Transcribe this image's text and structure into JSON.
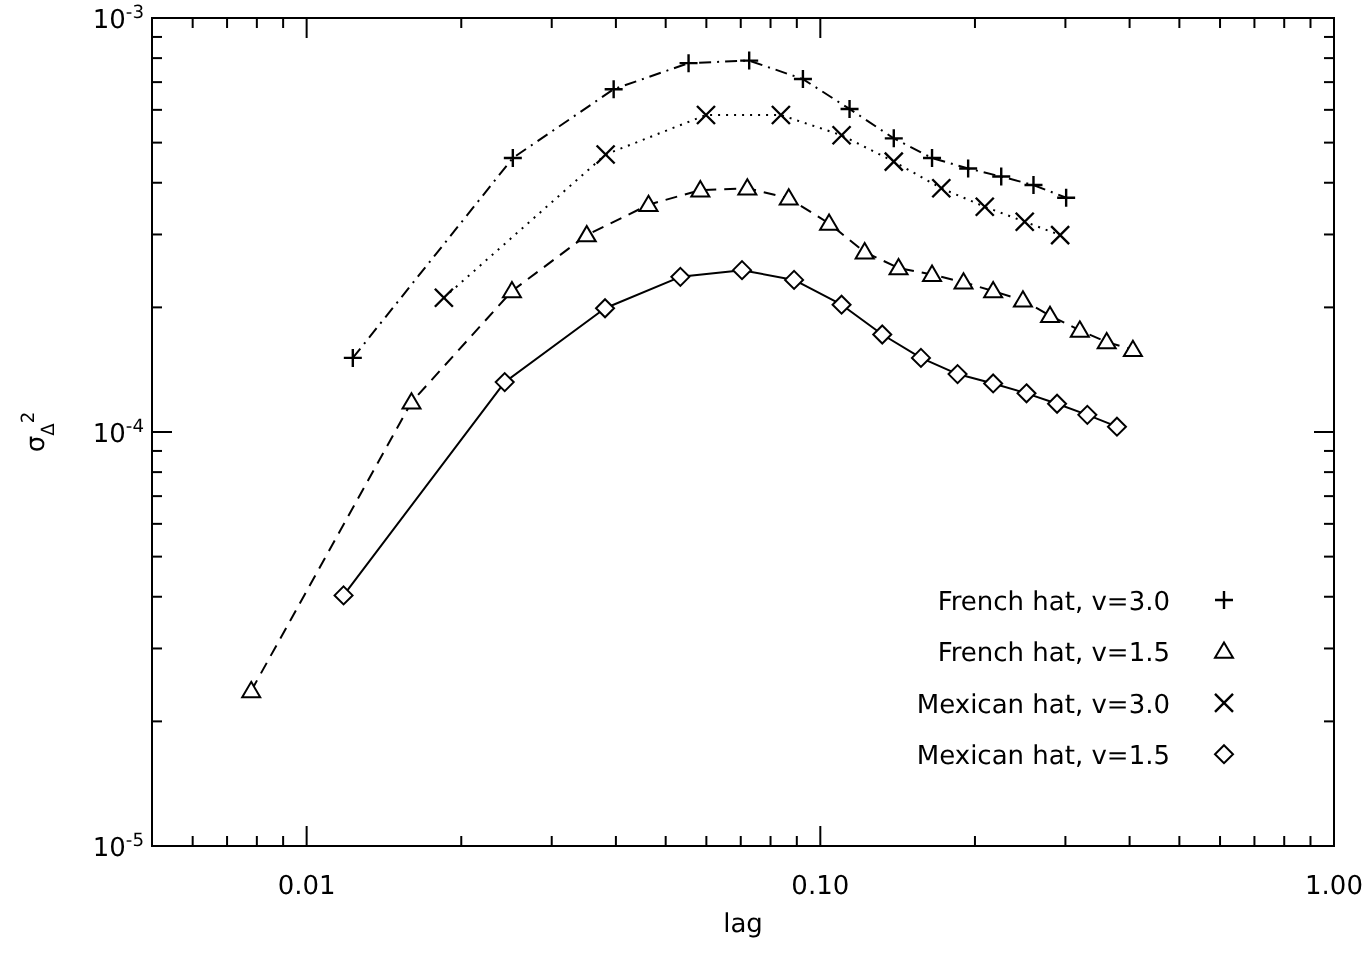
{
  "chart_data": {
    "type": "line",
    "xlabel": "lag",
    "ylabel": "σ$_{Δ}$$^{2}$",
    "log": "xy",
    "grid": false,
    "legend": "bottom right",
    "xlim": [
      0.005,
      1
    ],
    "ylim": [
      1e-05,
      0.001
    ],
    "xticks": [
      {
        "value": 0.006,
        "label": null
      },
      {
        "value": 0.007,
        "label": null
      },
      {
        "value": 0.008,
        "label": null
      },
      {
        "value": 0.009,
        "label": null
      },
      {
        "value": 0.01,
        "label": "0.01"
      },
      {
        "value": 0.02,
        "label": null
      },
      {
        "value": 0.03,
        "label": null
      },
      {
        "value": 0.04,
        "label": null
      },
      {
        "value": 0.05,
        "label": null
      },
      {
        "value": 0.06,
        "label": null
      },
      {
        "value": 0.07,
        "label": null
      },
      {
        "value": 0.08,
        "label": null
      },
      {
        "value": 0.09,
        "label": null
      },
      {
        "value": 0.1,
        "label": "0.10"
      },
      {
        "value": 0.2,
        "label": null
      },
      {
        "value": 0.3,
        "label": null
      },
      {
        "value": 0.4,
        "label": null
      },
      {
        "value": 0.5,
        "label": null
      },
      {
        "value": 0.6,
        "label": null
      },
      {
        "value": 0.7,
        "label": null
      },
      {
        "value": 0.8,
        "label": null
      },
      {
        "value": 0.9,
        "label": null
      },
      {
        "value": 1,
        "label": "1.00"
      }
    ],
    "yticks": [
      {
        "value": 1e-05,
        "label": "10$^{-5}$"
      },
      {
        "value": 2e-05,
        "label": null
      },
      {
        "value": 3e-05,
        "label": null
      },
      {
        "value": 4e-05,
        "label": null
      },
      {
        "value": 5e-05,
        "label": null
      },
      {
        "value": 6e-05,
        "label": null
      },
      {
        "value": 7e-05,
        "label": null
      },
      {
        "value": 8e-05,
        "label": null
      },
      {
        "value": 9e-05,
        "label": null
      },
      {
        "value": 0.0001,
        "label": "10$^{-4}$"
      },
      {
        "value": 0.0002,
        "label": null
      },
      {
        "value": 0.0003,
        "label": null
      },
      {
        "value": 0.0004,
        "label": null
      },
      {
        "value": 0.0005,
        "label": null
      },
      {
        "value": 0.0006,
        "label": null
      },
      {
        "value": 0.0007,
        "label": null
      },
      {
        "value": 0.0008,
        "label": null
      },
      {
        "value": 0.0009,
        "label": null
      },
      {
        "value": 0.001,
        "label": "10$^{-3}$"
      }
    ],
    "series": [
      {
        "name": "French hat, v=3.0",
        "color": "#000000",
        "marker": "plus",
        "line_style": "dashdot",
        "x": [
          0.0123,
          0.0252,
          0.0396,
          0.0554,
          0.0727,
          0.0925,
          0.114,
          0.139,
          0.165,
          0.194,
          0.225,
          0.26,
          0.301
        ],
        "values": [
          0.000151,
          0.000459,
          0.000673,
          0.000778,
          0.000789,
          0.000712,
          0.000603,
          0.000512,
          0.000459,
          0.000433,
          0.000414,
          0.000395,
          0.000368
        ]
      },
      {
        "name": "French hat, v=1.5",
        "color": "#000000",
        "marker": "triangle",
        "line_style": "dashed",
        "x": [
          0.0078,
          0.016,
          0.0251,
          0.0351,
          0.0463,
          0.0584,
          0.0721,
          0.0868,
          0.104,
          0.122,
          0.142,
          0.165,
          0.19,
          0.217,
          0.248,
          0.28,
          0.32,
          0.361,
          0.406
        ],
        "values": [
          2.37e-05,
          0.000118,
          0.000219,
          0.000299,
          0.000354,
          0.000384,
          0.000388,
          0.000367,
          0.000319,
          0.000272,
          0.000249,
          0.00024,
          0.00023,
          0.000219,
          0.000208,
          0.000191,
          0.000176,
          0.000165,
          0.000158
        ]
      },
      {
        "name": "Mexican hat, v=3.0",
        "color": "#000000",
        "marker": "cross",
        "line_style": "dotted",
        "x": [
          0.0185,
          0.0382,
          0.0599,
          0.0838,
          0.11,
          0.139,
          0.172,
          0.209,
          0.25,
          0.293
        ],
        "values": [
          0.000211,
          0.000468,
          0.000583,
          0.000583,
          0.000521,
          0.00045,
          0.000388,
          0.00035,
          0.000322,
          0.000299
        ]
      },
      {
        "name": "Mexican hat, v=1.5",
        "color": "#000000",
        "marker": "diamond",
        "line_style": "solid",
        "x": [
          0.0118,
          0.0243,
          0.0381,
          0.0534,
          0.0704,
          0.0889,
          0.11,
          0.132,
          0.157,
          0.185,
          0.217,
          0.252,
          0.289,
          0.331,
          0.378
        ],
        "values": [
          4.03e-05,
          0.000132,
          0.000199,
          0.000237,
          0.000246,
          0.000233,
          0.000203,
          0.000172,
          0.000151,
          0.000138,
          0.000131,
          0.000124,
          0.000117,
          0.00011,
          0.000103
        ]
      }
    ]
  }
}
